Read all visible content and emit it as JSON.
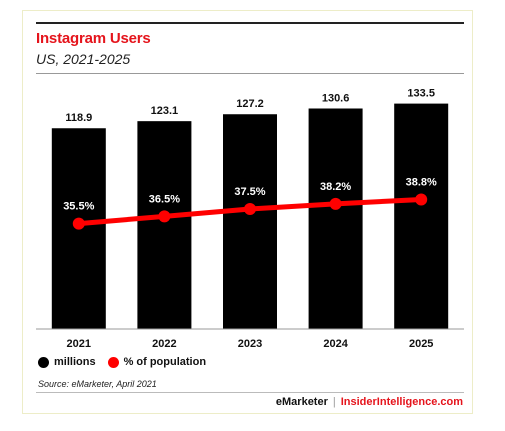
{
  "header": {
    "title": "Instagram Users",
    "subtitle": "US, 2021-2025"
  },
  "legend": {
    "millions_label": "millions",
    "pct_label": "% of population"
  },
  "source": "Source: eMarketer, April 2021",
  "footer": {
    "brand1": "eMarketer",
    "separator": "|",
    "brand2": "InsiderIntelligence.com"
  },
  "colors": {
    "bar": "#000000",
    "line": "#ff0000",
    "title": "#e5141c"
  },
  "chart_data": {
    "type": "bar",
    "categories": [
      "2021",
      "2022",
      "2023",
      "2024",
      "2025"
    ],
    "series": [
      {
        "name": "millions",
        "type": "bar",
        "values": [
          118.9,
          123.1,
          127.2,
          130.6,
          133.5
        ],
        "labels": [
          "118.9",
          "123.1",
          "127.2",
          "130.6",
          "133.5"
        ]
      },
      {
        "name": "% of population",
        "type": "line",
        "values": [
          35.5,
          36.5,
          37.5,
          38.2,
          38.8
        ],
        "labels": [
          "35.5%",
          "36.5%",
          "37.5%",
          "38.2%",
          "38.8%"
        ]
      }
    ],
    "ylim_bars": [
      0,
      138
    ],
    "ylim_line": [
      0,
      100
    ],
    "grid": false,
    "legend_position": "bottom-left"
  }
}
